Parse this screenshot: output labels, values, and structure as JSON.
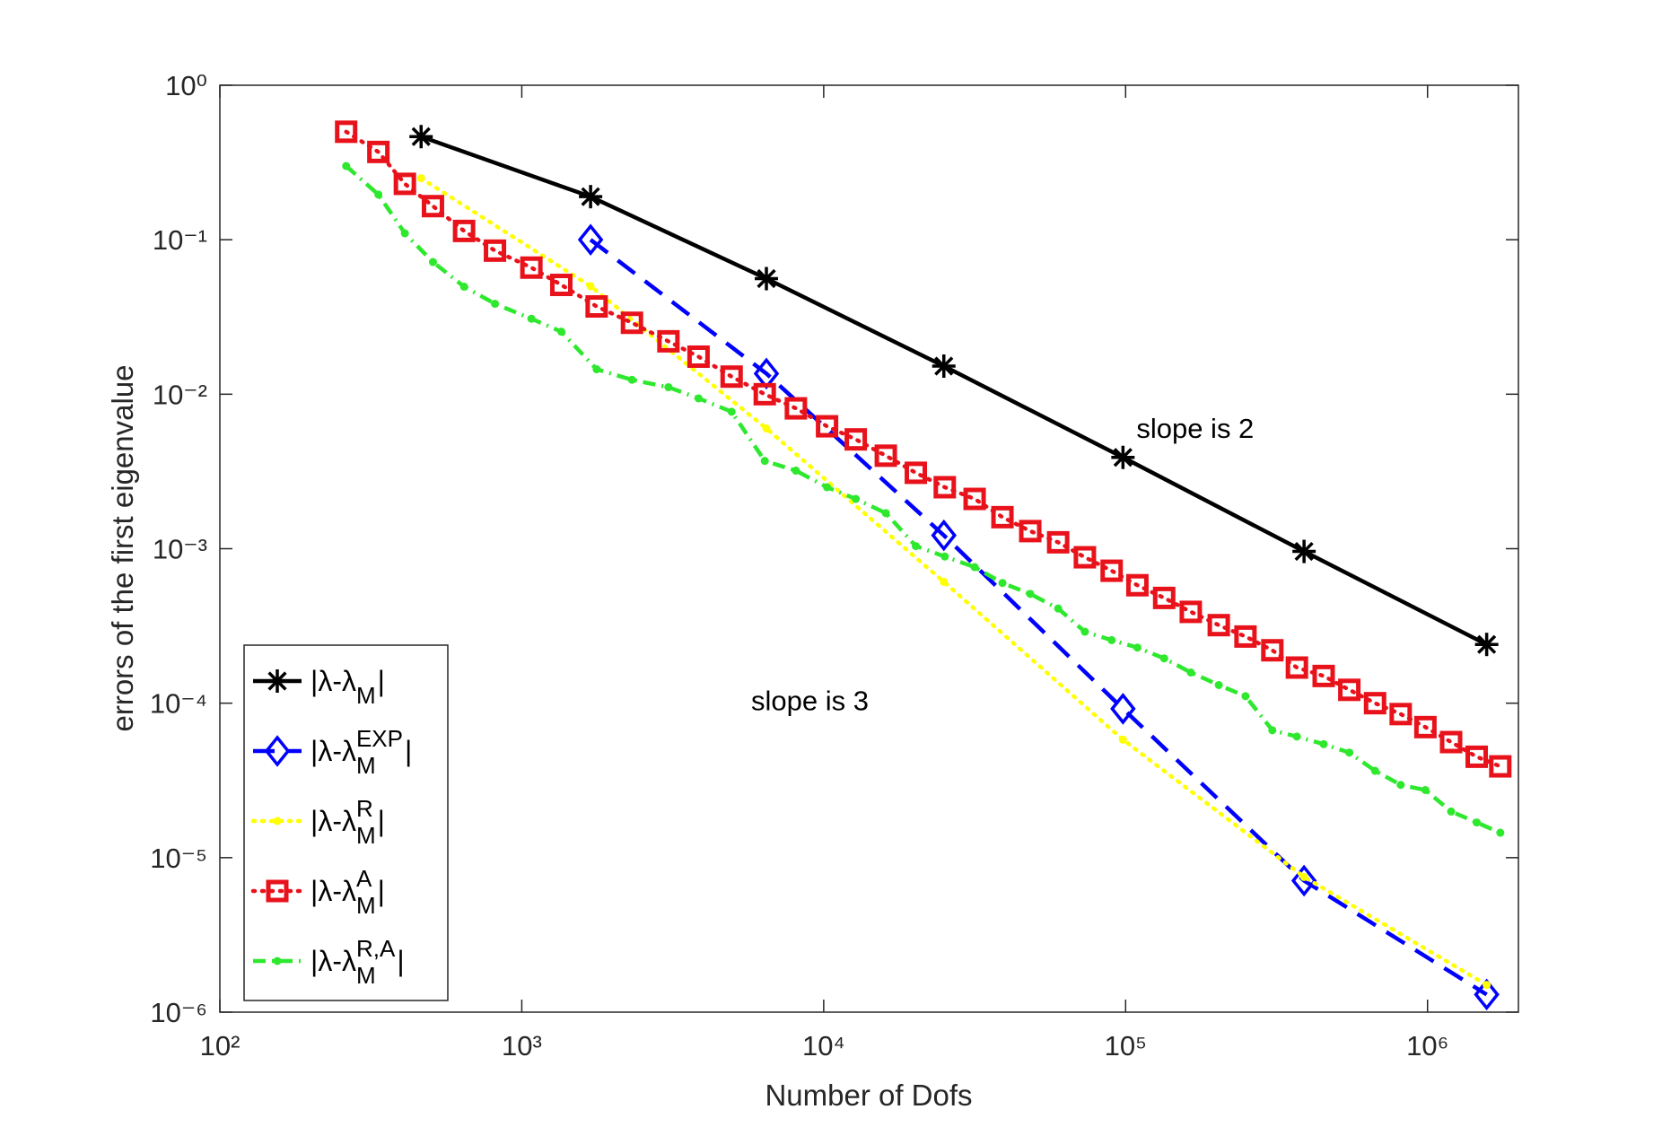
{
  "chart_data": {
    "type": "line",
    "xlabel": "Number of Dofs",
    "ylabel": "errors of the first eigenvalue",
    "xscale": "log",
    "yscale": "log",
    "xlim": [
      100,
      2000000
    ],
    "ylim": [
      1e-06,
      1
    ],
    "xticks": [
      {
        "value": 100,
        "label": "10²"
      },
      {
        "value": 1000,
        "label": "10³"
      },
      {
        "value": 10000,
        "label": "10⁴"
      },
      {
        "value": 100000,
        "label": "10⁵"
      },
      {
        "value": 1000000,
        "label": "10⁶"
      }
    ],
    "yticks": [
      {
        "value": 1e-06,
        "label": "10⁻⁶"
      },
      {
        "value": 1e-05,
        "label": "10⁻⁵"
      },
      {
        "value": 0.0001,
        "label": "10⁻⁴"
      },
      {
        "value": 0.001,
        "label": "10⁻³"
      },
      {
        "value": 0.01,
        "label": "10⁻²"
      },
      {
        "value": 0.1,
        "label": "10⁻¹"
      },
      {
        "value": 1,
        "label": "10⁰"
      }
    ],
    "grid": false,
    "legend": "lower left",
    "annotations": [
      {
        "text": "slope is 2",
        "x": 170000,
        "y": 0.0052
      },
      {
        "text": "slope is 3",
        "x": 9000,
        "y": 9e-05
      }
    ],
    "series": [
      {
        "name": "|λ-λ_M|",
        "color": "#000000",
        "linestyle": "solid",
        "marker": "asterisk",
        "x": [
          464,
          1690,
          6460,
          25000,
          98000,
          390000,
          1570000
        ],
        "values": [
          0.465,
          0.19,
          0.056,
          0.0152,
          0.0039,
          0.00096,
          0.00024
        ]
      },
      {
        "name": "|λ-λ_M^{EXP}|",
        "color": "#0000ff",
        "linestyle": "dashed",
        "marker": "diamond",
        "x": [
          1690,
          6460,
          25000,
          98000,
          390000,
          1570000
        ],
        "values": [
          0.1,
          0.0136,
          0.00122,
          9.2e-05,
          7.1e-06,
          1.3e-06
        ]
      },
      {
        "name": "|λ-λ_M^{R}|",
        "color": "#ffff00",
        "linestyle": "dotted",
        "marker": "dot",
        "x": [
          464,
          1690,
          6460,
          25000,
          98000,
          390000,
          1570000
        ],
        "values": [
          0.25,
          0.05,
          0.006,
          0.00061,
          5.8e-05,
          7.5e-06,
          1.5e-06
        ]
      },
      {
        "name": "|λ-λ_M^{A}|",
        "color": "#e8121b",
        "linestyle": "dotted",
        "marker": "square",
        "x": [
          262,
          335,
          410,
          508,
          644,
          815,
          1076,
          1352,
          1770,
          2317,
          3060,
          3850,
          4955,
          6380,
          8090,
          10260,
          12770,
          16060,
          20190,
          25180,
          31620,
          39090,
          48320,
          59790,
          73300,
          89900,
          109400,
          134200,
          164400,
          203500,
          249500,
          306200,
          369300,
          452900,
          550800,
          670200,
          815000,
          984000,
          1197000,
          1455000,
          1742000
        ],
        "values": [
          0.5,
          0.37,
          0.23,
          0.165,
          0.114,
          0.085,
          0.066,
          0.051,
          0.037,
          0.029,
          0.022,
          0.0175,
          0.013,
          0.01,
          0.0081,
          0.0062,
          0.0051,
          0.004,
          0.0031,
          0.0025,
          0.0021,
          0.0016,
          0.0013,
          0.0011,
          0.00088,
          0.00072,
          0.00058,
          0.00048,
          0.00039,
          0.00032,
          0.00027,
          0.00022,
          0.00017,
          0.00015,
          0.000122,
          0.0001,
          8.5e-05,
          7e-05,
          5.6e-05,
          4.5e-05,
          3.9e-05
        ]
      },
      {
        "name": "|λ-λ_M^{R,A}|",
        "color": "#2ee82e",
        "linestyle": "dashdot",
        "marker": "dot",
        "x": [
          262,
          335,
          410,
          508,
          644,
          815,
          1076,
          1352,
          1770,
          2317,
          3060,
          3850,
          4955,
          6380,
          8090,
          10260,
          12770,
          16060,
          20190,
          25180,
          31620,
          39090,
          48320,
          59790,
          73300,
          89900,
          109400,
          134200,
          164400,
          203500,
          249500,
          306200,
          369300,
          452900,
          550800,
          670200,
          815000,
          984000,
          1197000,
          1455000,
          1742000
        ],
        "values": [
          0.3,
          0.196,
          0.11,
          0.0717,
          0.0497,
          0.0385,
          0.0308,
          0.0254,
          0.0145,
          0.0124,
          0.0111,
          0.0094,
          0.0077,
          0.0037,
          0.0032,
          0.0025,
          0.0021,
          0.0017,
          0.00104,
          0.00089,
          0.00076,
          0.0006,
          0.00051,
          0.00041,
          0.00029,
          0.000256,
          0.000229,
          0.000195,
          0.000158,
          0.000131,
          0.000111,
          6.68e-05,
          6.08e-05,
          5.43e-05,
          4.79e-05,
          3.65e-05,
          2.96e-05,
          2.74e-05,
          1.99e-05,
          1.69e-05,
          1.45e-05
        ]
      }
    ]
  }
}
